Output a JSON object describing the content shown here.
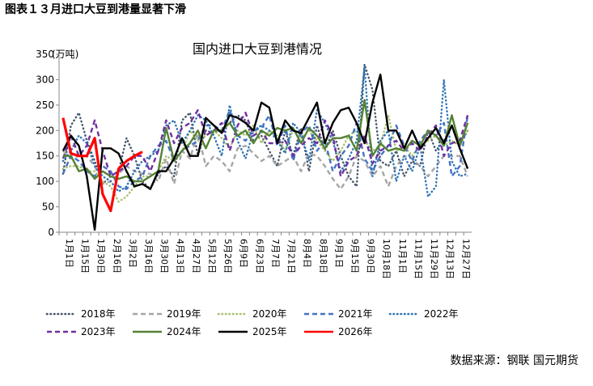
{
  "page_title": "图表１３月进口大豆到港量显著下滑",
  "source": "数据来源：钢联 国元期货",
  "chart_data": {
    "type": "line",
    "title": "国内进口大豆到港情况",
    "y_unit": "(万吨)",
    "categories": [
      "1月1日",
      null,
      "1月15日",
      null,
      "1月30日",
      null,
      "2月16日",
      null,
      "3月2日",
      null,
      "3月16日",
      null,
      "3月30日",
      null,
      "4月13日",
      null,
      "4月27日",
      null,
      "5月12日",
      null,
      "5月26日",
      null,
      "6月9日",
      null,
      "6月23日",
      null,
      "7月7日",
      null,
      "7月21日",
      null,
      "8月4日",
      null,
      "8月18日",
      null,
      "9月1日",
      null,
      "9月15日",
      null,
      "9月30日",
      null,
      "10月18日",
      null,
      "11月1日",
      null,
      "11月15日",
      null,
      "11月29日",
      null,
      "12月13日",
      null,
      "12月27日",
      null
    ],
    "ylim": [
      0,
      350
    ],
    "yticks": [
      0,
      50,
      100,
      150,
      200,
      250,
      300,
      350
    ],
    "series": [
      {
        "name": "2018年",
        "color": "#44546a",
        "dash": "dotted",
        "values": [
          115,
          210,
          235,
          180,
          140,
          95,
          110,
          120,
          185,
          150,
          100,
          85,
          115,
          130,
          110,
          220,
          235,
          150,
          200,
          195,
          200,
          215,
          230,
          220,
          180,
          190,
          160,
          130,
          200,
          150,
          205,
          120,
          210,
          160,
          200,
          150,
          110,
          90,
          330,
          280,
          140,
          130,
          160,
          110,
          140,
          130,
          200,
          160,
          180,
          210,
          170,
          200
        ]
      },
      {
        "name": "2019年",
        "color": "#a5a5a5",
        "dash": "dashed",
        "values": [
          160,
          145,
          150,
          150,
          130,
          95,
          100,
          115,
          130,
          120,
          115,
          115,
          100,
          145,
          95,
          160,
          145,
          195,
          130,
          150,
          140,
          120,
          165,
          170,
          155,
          140,
          150,
          130,
          140,
          150,
          120,
          155,
          150,
          130,
          105,
          85,
          110,
          150,
          140,
          110,
          130,
          90,
          130,
          150,
          145,
          130,
          110,
          130,
          150,
          150,
          150,
          110
        ]
      },
      {
        "name": "2020年",
        "color": "#a9c06a",
        "dash": "dotted",
        "values": [
          125,
          130,
          130,
          120,
          120,
          100,
          90,
          60,
          70,
          90,
          110,
          110,
          120,
          150,
          140,
          160,
          200,
          180,
          190,
          200,
          185,
          165,
          200,
          190,
          210,
          175,
          200,
          190,
          160,
          200,
          185,
          200,
          180,
          160,
          140,
          160,
          190,
          200,
          180,
          160,
          170,
          230,
          160,
          170,
          150,
          170,
          180,
          190,
          170,
          180,
          170,
          200
        ]
      },
      {
        "name": "2021年",
        "color": "#4472c4",
        "dash": "dashed",
        "values": [
          115,
          150,
          140,
          120,
          110,
          130,
          120,
          90,
          85,
          100,
          110,
          150,
          170,
          180,
          140,
          160,
          170,
          180,
          210,
          210,
          200,
          240,
          190,
          180,
          200,
          205,
          230,
          170,
          210,
          140,
          195,
          210,
          160,
          180,
          120,
          150,
          170,
          215,
          145,
          120,
          150,
          170,
          210,
          170,
          140,
          180,
          200,
          190,
          215,
          110,
          130,
          230
        ]
      },
      {
        "name": "2022年",
        "color": "#2e75b6",
        "dash": "dotted",
        "values": [
          140,
          160,
          190,
          175,
          130,
          110,
          100,
          80,
          90,
          120,
          140,
          150,
          160,
          210,
          220,
          175,
          200,
          230,
          220,
          190,
          150,
          250,
          180,
          145,
          200,
          210,
          200,
          180,
          155,
          215,
          195,
          140,
          240,
          215,
          180,
          120,
          145,
          180,
          325,
          110,
          180,
          200,
          100,
          150,
          120,
          170,
          70,
          90,
          300,
          140,
          110,
          115
        ]
      },
      {
        "name": "2023年",
        "color": "#7030a0",
        "dash": "dashed",
        "values": [
          145,
          190,
          150,
          170,
          220,
          160,
          110,
          120,
          130,
          150,
          150,
          120,
          160,
          220,
          175,
          205,
          215,
          240,
          190,
          200,
          215,
          160,
          210,
          235,
          190,
          200,
          175,
          175,
          180,
          150,
          170,
          185,
          175,
          220,
          190,
          110,
          140,
          150,
          190,
          135,
          160,
          170,
          180,
          160,
          175,
          160,
          190,
          210,
          150,
          175,
          180,
          230
        ]
      },
      {
        "name": "2024年",
        "color": "#548235",
        "dash": "solid",
        "values": [
          150,
          150,
          120,
          125,
          105,
          120,
          110,
          105,
          110,
          100,
          100,
          110,
          120,
          205,
          140,
          160,
          175,
          200,
          165,
          200,
          200,
          215,
          190,
          200,
          175,
          200,
          190,
          205,
          200,
          205,
          175,
          205,
          190,
          165,
          185,
          185,
          190,
          160,
          260,
          150,
          175,
          160,
          165,
          160,
          180,
          170,
          200,
          190,
          170,
          230,
          170,
          215
        ]
      },
      {
        "name": "2025年",
        "color": "#000000",
        "dash": "solid",
        "values": [
          160,
          190,
          170,
          110,
          5,
          165,
          165,
          155,
          120,
          90,
          95,
          85,
          120,
          120,
          145,
          185,
          150,
          150,
          225,
          210,
          195,
          230,
          225,
          215,
          200,
          255,
          245,
          175,
          220,
          200,
          195,
          225,
          255,
          175,
          215,
          240,
          245,
          215,
          175,
          255,
          310,
          200,
          200,
          165,
          200,
          165,
          185,
          205,
          175,
          210,
          165,
          125
        ]
      },
      {
        "name": "2026年",
        "color": "#ff0000",
        "dash": "solid",
        "values": [
          225,
          155,
          150,
          150,
          185,
          75,
          42,
          125,
          140,
          150,
          158,
          null,
          null,
          null,
          null,
          null,
          null,
          null,
          null,
          null,
          null,
          null,
          null,
          null,
          null,
          null,
          null,
          null,
          null,
          null,
          null,
          null,
          null,
          null,
          null,
          null,
          null,
          null,
          null,
          null,
          null,
          null,
          null,
          null,
          null,
          null,
          null,
          null,
          null,
          null,
          null,
          null
        ]
      }
    ]
  }
}
